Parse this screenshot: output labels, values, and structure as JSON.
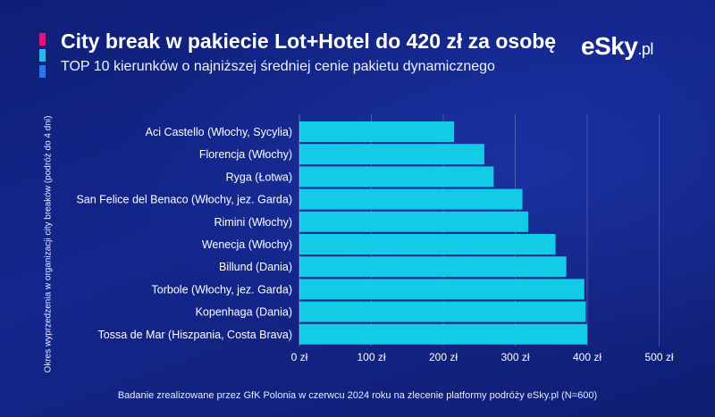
{
  "header": {
    "title": "City break w pakiecie Lot+Hotel do 420 zł za osobę",
    "subtitle": "TOP 10 kierunków o najniższej średniej cenie pakietu dynamicznego",
    "logo_main": "eSky",
    "logo_suffix": ".pl"
  },
  "colors": {
    "bar": "#12cbe6",
    "accent": [
      "#e3147a",
      "#2fb4f0",
      "#2a78e4"
    ],
    "background": "#13268c"
  },
  "footer": "Badanie zrealizowane przez GfK Polonia w czerwcu 2024 roku na zlecenie platformy podróży eSky.pl (N=600)",
  "chart_data": {
    "type": "bar",
    "orientation": "horizontal",
    "categories": [
      "Aci Castello (Włochy, Sycylia)",
      "Florencja (Włochy)",
      "Ryga (Łotwa)",
      "San Felice del Benaco (Włochy, jez. Garda)",
      "Rimini (Włochy)",
      "Wenecja (Włochy)",
      "Billund (Dania)",
      "Torbole (Włochy, jez. Garda)",
      "Kopenhaga (Dania)",
      "Tossa de Mar (Hiszpania, Costa Brava)"
    ],
    "values": [
      215,
      257,
      270,
      310,
      318,
      356,
      371,
      396,
      398,
      400
    ],
    "xlim": [
      0,
      500
    ],
    "xticks": [
      0,
      100,
      200,
      300,
      400,
      500
    ],
    "xtick_labels": [
      "0 zł",
      "100 zł",
      "200 zł",
      "300 zł",
      "400 zł",
      "500 zł"
    ],
    "ylabel": "Okres wyprzedzenia w organizacji city breaków (podróż do 4 dni)",
    "grid": true
  }
}
